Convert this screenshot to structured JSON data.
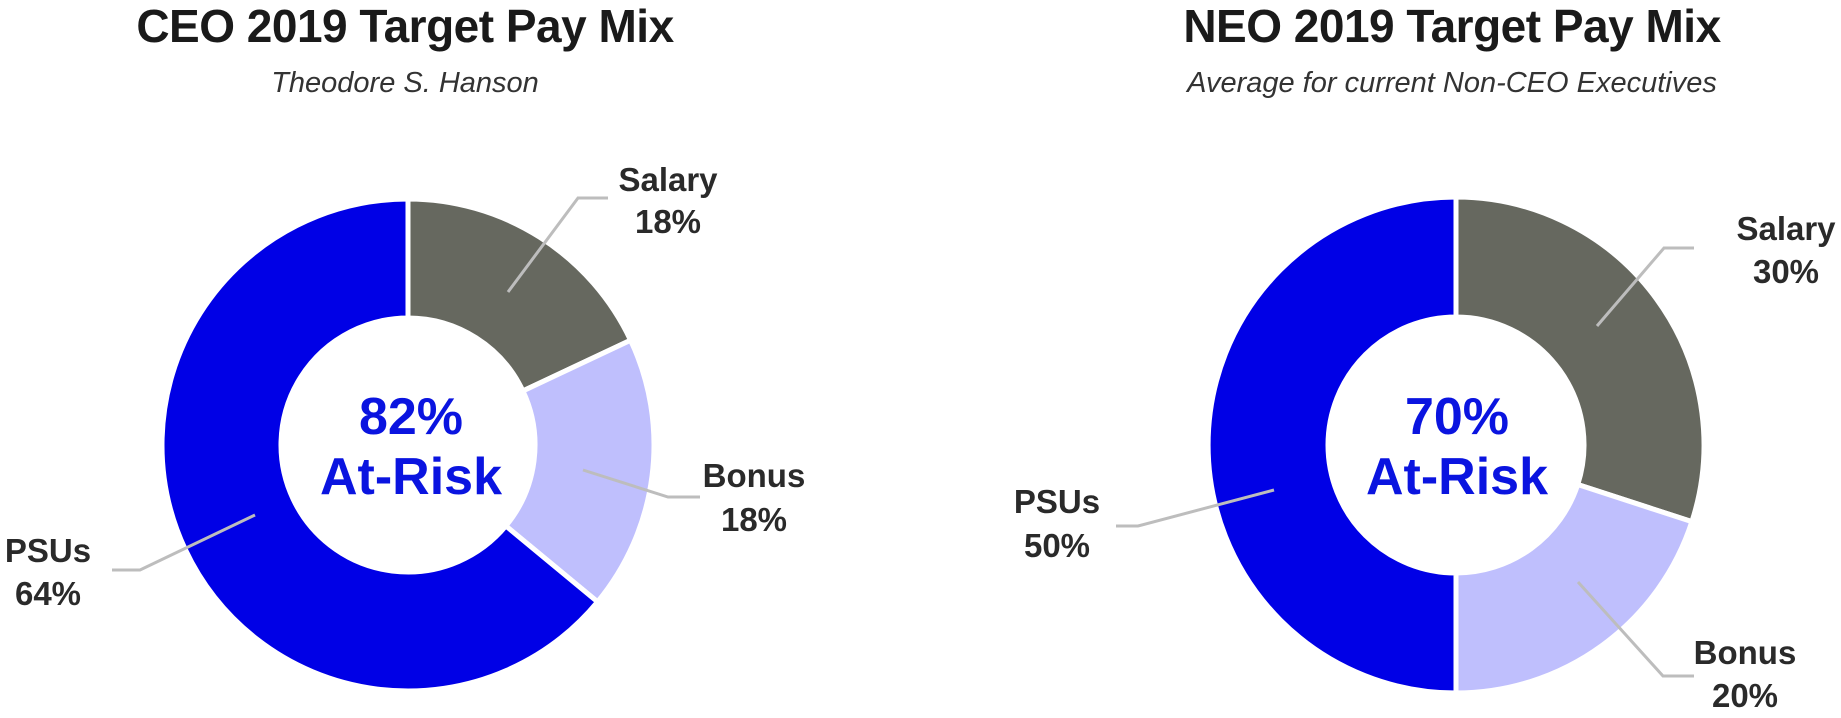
{
  "colors": {
    "salary": "#66685f",
    "bonus": "#bfbffd",
    "psus": "#0000e6",
    "accent": "#0a14e0",
    "leader": "#bdbdbd"
  },
  "chart_data": [
    {
      "type": "pie",
      "title": "CEO 2019 Target Pay Mix",
      "subtitle": "Theodore S. Hanson",
      "center_value": "82%",
      "center_label": "At-Risk",
      "slices": [
        {
          "name": "Salary",
          "value": 18,
          "value_label": "18%"
        },
        {
          "name": "Bonus",
          "value": 18,
          "value_label": "18%"
        },
        {
          "name": "PSUs",
          "value": 64,
          "value_label": "64%"
        }
      ]
    },
    {
      "type": "pie",
      "title": "NEO 2019 Target Pay Mix",
      "subtitle": "Average for current Non-CEO Executives",
      "center_value": "70%",
      "center_label": "At-Risk",
      "slices": [
        {
          "name": "Salary",
          "value": 30,
          "value_label": "30%"
        },
        {
          "name": "Bonus",
          "value": 20,
          "value_label": "20%"
        },
        {
          "name": "PSUs",
          "value": 50,
          "value_label": "50%"
        }
      ]
    }
  ]
}
